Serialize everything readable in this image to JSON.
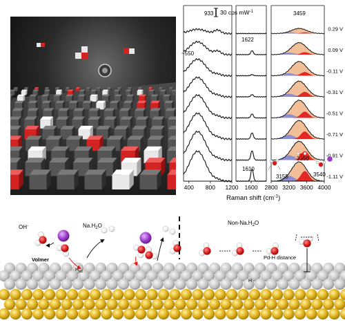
{
  "raman": {
    "scale_bar_label": "30 cps mW",
    "scale_bar_sup": "-1",
    "xlabel": "Raman shift (cm",
    "xlabel_sup": "-1",
    "xlabel_end": ")",
    "peak_labels": {
      "p933": "933",
      "p550": "~550",
      "p1622": "1622",
      "p1610": "1610",
      "p3459": "3459",
      "p3155": "3155",
      "p3350": "3350",
      "p3540": "3540"
    },
    "colors": {
      "fit_total": "#f2b88e",
      "fit_blue": "#7d86d9",
      "fit_red": "#e01818",
      "trace": "#111111"
    }
  },
  "chart_data": {
    "type": "line",
    "title": "",
    "xlabel": "Raman shift (cm-1)",
    "ylabel": "",
    "x_segments": [
      {
        "range": [
          300,
          1200
        ],
        "ticks": [
          400,
          800,
          1200
        ]
      },
      {
        "range": [
          1400,
          1800
        ],
        "ticks": [
          1600
        ]
      },
      {
        "range": [
          2800,
          4000
        ],
        "ticks": [
          2800,
          3200,
          3600,
          4000
        ]
      }
    ],
    "series": [
      {
        "name": "0.29 V",
        "peak_550": 0.15,
        "peak_1610": 0.0,
        "peak_3459": 0.18,
        "trace_1200": 0.1
      },
      {
        "name": "0.09 V",
        "peak_550": 0.45,
        "peak_1610": 0.18,
        "peak_3459": 0.42,
        "trace_1200": 0.1
      },
      {
        "name": "-0.11 V",
        "peak_550": 0.58,
        "peak_1610": 0.05,
        "peak_3459": 0.5,
        "trace_1200": 0.1
      },
      {
        "name": "-0.31 V",
        "peak_550": 0.68,
        "peak_1610": 0.1,
        "peak_3459": 0.55,
        "trace_1200": 0.1
      },
      {
        "name": "-0.51 V",
        "peak_550": 0.8,
        "peak_1610": 0.18,
        "peak_3459": 0.62,
        "trace_1200": 0.1
      },
      {
        "name": "-0.71 V",
        "peak_550": 0.9,
        "peak_1610": 0.28,
        "peak_3459": 0.65,
        "trace_1200": 0.1
      },
      {
        "name": "-0.91 V",
        "peak_550": 1.0,
        "peak_1610": 0.42,
        "peak_3459": 0.66,
        "trace_1200": 0.1
      },
      {
        "name": "-1.11 V",
        "peak_550": 1.05,
        "peak_1610": 0.55,
        "peak_3459": 0.68,
        "trace_1200": 0.1
      }
    ],
    "grid": false
  },
  "scheme": {
    "oh_label": "OH",
    "oh_sup": "-",
    "na_h2o_label": "Na.H",
    "na_h2o_sub": "2",
    "na_h2o_end": "O",
    "volmer_label": "Volmer",
    "had_label": "H",
    "had_sub": "ad",
    "non_na_label": "Non-Na.H",
    "non_na_sub": "2",
    "non_na_end": "O",
    "pd_h_label": "Pd-H distance",
    "h_label": "H",
    "colors": {
      "surface": "#c9c9c9",
      "subsurface": "#e0b321",
      "oxygen": "#d61a1a",
      "hydrogen": "#ffffff",
      "sodium": "#9a39c9"
    }
  }
}
